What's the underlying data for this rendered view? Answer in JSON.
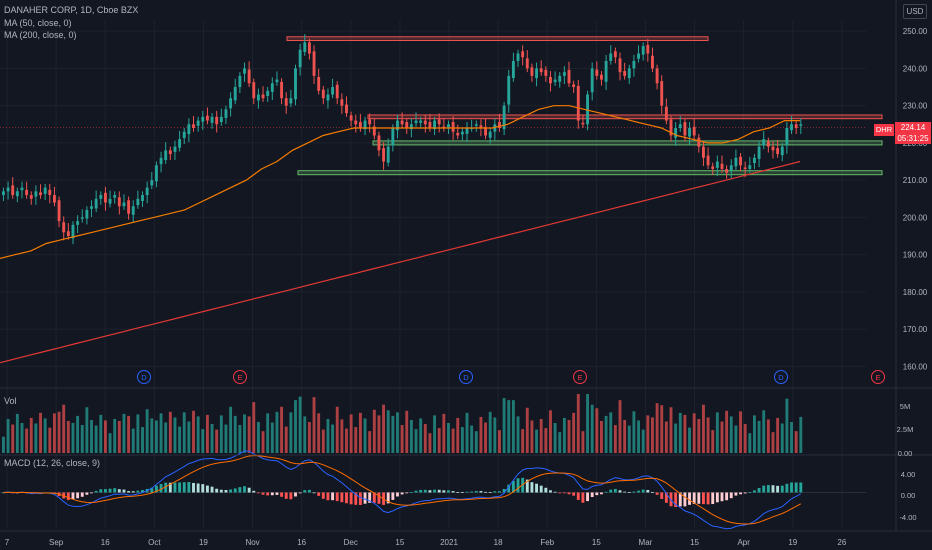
{
  "header": {
    "title": "DANAHER CORP, 1D, Cboe BZX",
    "ma50": "MA (50, close, 0)",
    "ma200": "MA (200, close, 0)",
    "currency": "USD"
  },
  "volume_pane": {
    "label": "Vol",
    "ticks": [
      "5M",
      "2.5M",
      "0.00"
    ]
  },
  "macd_pane": {
    "label": "MACD (12, 26, close, 9)",
    "ticks": [
      "4.00",
      "0.00",
      "-4.00"
    ]
  },
  "price_marker": {
    "symbol": "DHR",
    "price": "224.14",
    "countdown": "05:31:25"
  },
  "colors": {
    "up": "#26a69a",
    "down": "#ef5350",
    "ma50": "#f57c00",
    "ma200": "#e53935",
    "macd": "#2962ff",
    "signal": "#ff6d00",
    "zone_red": "#ef5350",
    "zone_green": "#66bb6a"
  },
  "events": [
    "D",
    "E",
    "D",
    "E",
    "D",
    "E"
  ],
  "chart_data": {
    "type": "candlestick",
    "title": "DANAHER CORP, 1D, Cboe BZX",
    "x_ticks": [
      "7",
      "Sep",
      "16",
      "Oct",
      "19",
      "Nov",
      "16",
      "Dec",
      "15",
      "2021",
      "18",
      "Feb",
      "15",
      "Mar",
      "15",
      "Apr",
      "19",
      "26"
    ],
    "y_ticks": [
      160,
      170,
      180,
      190,
      200,
      210,
      220,
      230,
      240,
      250
    ],
    "ylim": [
      155,
      253
    ],
    "last_price": 224.14,
    "ohlc_close_path": [
      207,
      208,
      206,
      207,
      208,
      206,
      205,
      207,
      206,
      208,
      206,
      204,
      199,
      196,
      195,
      198,
      199,
      200,
      202,
      203,
      205,
      206,
      204,
      205,
      206,
      203,
      204,
      201,
      203,
      205,
      206,
      208,
      210,
      214,
      216,
      218,
      217,
      219,
      221,
      223,
      225,
      224,
      226,
      227,
      226,
      227,
      225,
      227,
      229,
      232,
      235,
      238,
      240,
      236,
      232,
      233,
      232,
      234,
      236,
      237,
      232,
      230,
      232,
      240,
      245,
      247,
      244,
      238,
      234,
      232,
      233,
      235,
      232,
      230,
      228,
      226,
      225,
      224,
      226,
      225,
      222,
      218,
      215,
      219,
      224,
      226,
      225,
      224,
      225,
      226,
      226,
      225,
      224,
      226,
      225,
      224,
      225,
      223,
      222,
      223,
      224,
      224,
      225,
      224,
      222,
      223,
      225,
      224,
      230,
      238,
      242,
      244,
      243,
      240,
      238,
      240,
      239,
      238,
      236,
      237,
      238,
      239,
      236,
      235,
      226,
      225,
      233,
      240,
      238,
      237,
      242,
      244,
      243,
      239,
      238,
      240,
      242,
      244,
      246,
      244,
      240,
      236,
      230,
      226,
      222,
      224,
      225,
      222,
      224,
      222,
      219,
      216,
      214,
      213,
      215,
      213,
      212,
      214,
      216,
      214,
      213,
      214,
      216,
      219,
      221,
      219,
      218,
      217,
      219,
      224,
      225,
      224,
      225
    ],
    "ma50_path": [
      189,
      190,
      191,
      193,
      194,
      195,
      196,
      197,
      198,
      199,
      200,
      201,
      202,
      204,
      206,
      208,
      210,
      213,
      215,
      218,
      220,
      222,
      223,
      224,
      224,
      224,
      224,
      224,
      224,
      224,
      224,
      224,
      224,
      225,
      227,
      229,
      230,
      230,
      229,
      228,
      227,
      226,
      225,
      224,
      222,
      221,
      220,
      220,
      221,
      223,
      224,
      226,
      226
    ],
    "ma200_path": [
      161,
      162,
      163,
      164,
      165,
      166,
      167,
      168,
      169,
      170,
      171,
      172,
      173,
      174,
      175,
      176,
      177,
      178,
      179,
      180,
      181,
      182,
      183,
      184,
      185,
      186,
      187,
      188,
      189,
      190,
      191,
      192,
      193,
      194,
      195,
      196,
      197,
      198,
      199,
      200,
      201,
      202,
      203,
      204,
      205,
      206,
      207,
      208,
      209,
      210,
      211,
      212,
      213,
      214,
      215
    ],
    "resistance_zones": [
      [
        247.5,
        248.5
      ],
      [
        226.5,
        227.5
      ]
    ],
    "support_lines": [
      220,
      212
    ],
    "volume_ylim": [
      0,
      6
    ],
    "macd_ylim": [
      -6,
      6
    ]
  }
}
